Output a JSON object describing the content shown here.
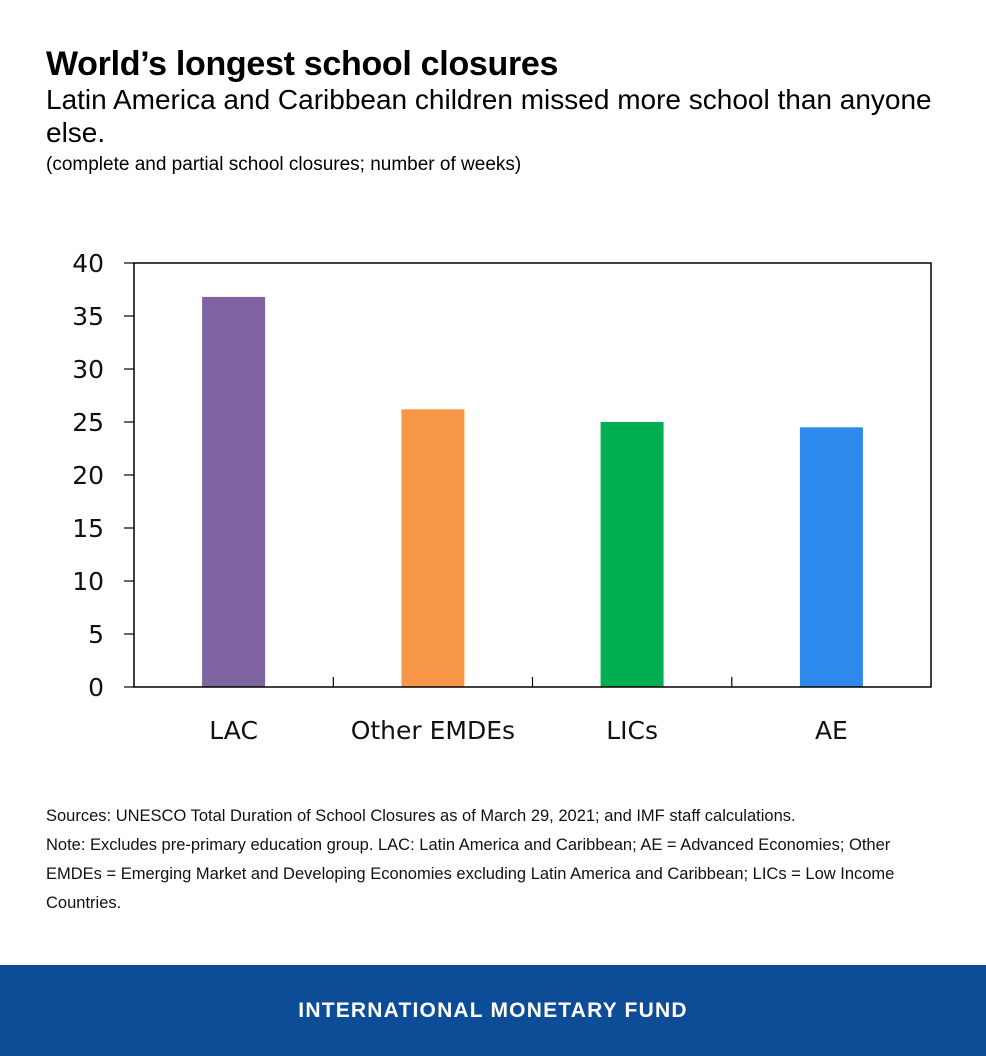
{
  "header": {
    "title": "World’s longest school closures",
    "subtitle": "Latin America and Caribbean children missed more school than anyone else.",
    "units": "(complete and partial school closures; number of weeks)"
  },
  "chart_data": {
    "type": "bar",
    "categories": [
      "LAC",
      "Other EMDEs",
      "LICs",
      "AE"
    ],
    "values": [
      36.8,
      26.2,
      25.0,
      24.5
    ],
    "colors": [
      "#8064a2",
      "#f79646",
      "#00b050",
      "#2e89ed"
    ],
    "ylim": [
      0,
      40
    ],
    "yticks": [
      0,
      5,
      10,
      15,
      20,
      25,
      30,
      35,
      40
    ],
    "grid": false,
    "legend": "none",
    "xlabel": "",
    "ylabel": ""
  },
  "notes": {
    "sources": "Sources: UNESCO Total Duration of School Closures as of March 29, 2021; and IMF staff calculations.",
    "note": "Note: Excludes pre-primary education group. LAC: Latin America and Caribbean; AE = Advanced Economies; Other EMDEs = Emerging Market and Developing Economies excluding Latin America and Caribbean; LICs = Low Income Countries."
  },
  "footer": {
    "label": "INTERNATIONAL MONETARY FUND",
    "background_color": "#0d4c97"
  }
}
